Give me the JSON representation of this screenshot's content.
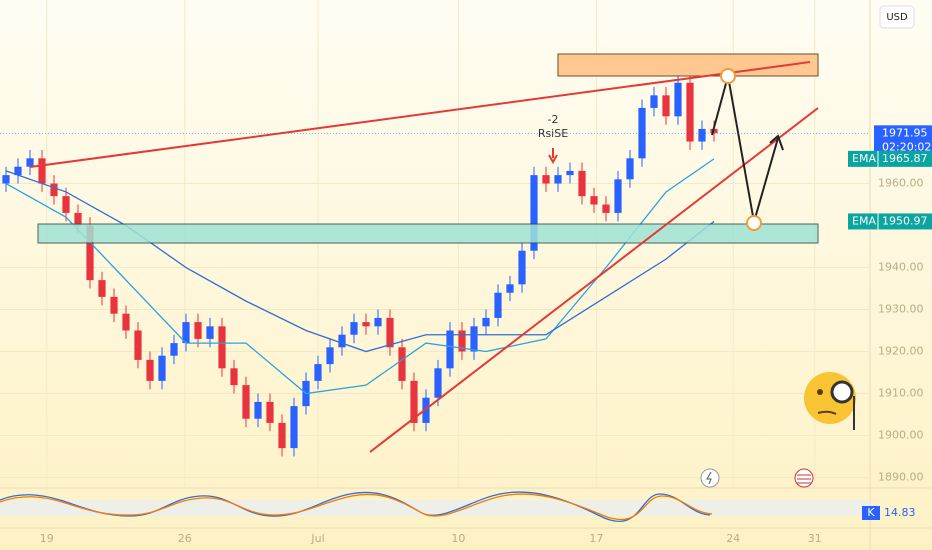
{
  "chart_data": {
    "type": "candlestick",
    "currency": "USD",
    "open": [
      1960,
      1962,
      1964,
      1966,
      1960,
      1957,
      1953,
      1950,
      1937,
      1933,
      1929,
      1925,
      1918,
      1913,
      1919,
      1922,
      1927,
      1923,
      1926,
      1916,
      1912,
      1904,
      1908,
      1903,
      1897,
      1907,
      1913,
      1917,
      1921,
      1924,
      1927,
      1926,
      1928,
      1921,
      1913,
      1903,
      1909,
      1916,
      1925,
      1920,
      1926,
      1928,
      1934,
      1936,
      1944,
      1962,
      1960,
      1962,
      1963,
      1957,
      1955,
      1953,
      1961,
      1966,
      1978,
      1981,
      1976,
      1984,
      1970,
      1973
    ],
    "high": [
      1964,
      1966,
      1968,
      1968,
      1962,
      1959,
      1955,
      1952,
      1939,
      1935,
      1931,
      1927,
      1920,
      1921,
      1924,
      1929,
      1929,
      1928,
      1928,
      1918,
      1914,
      1910,
      1910,
      1905,
      1909,
      1915,
      1919,
      1923,
      1926,
      1929,
      1929,
      1930,
      1930,
      1923,
      1915,
      1911,
      1918,
      1927,
      1927,
      1928,
      1930,
      1936,
      1938,
      1946,
      1964,
      1964,
      1964,
      1965,
      1965,
      1959,
      1957,
      1963,
      1968,
      1980,
      1983,
      1983,
      1986,
      1986,
      1975,
      1975
    ],
    "low": [
      1958,
      1960,
      1962,
      1958,
      1955,
      1951,
      1948,
      1935,
      1931,
      1927,
      1923,
      1916,
      1911,
      1911,
      1917,
      1920,
      1921,
      1921,
      1914,
      1910,
      1902,
      1902,
      1901,
      1895,
      1895,
      1905,
      1911,
      1915,
      1919,
      1922,
      1924,
      1924,
      1919,
      1911,
      1901,
      1901,
      1907,
      1914,
      1918,
      1918,
      1924,
      1926,
      1932,
      1934,
      1942,
      1958,
      1958,
      1960,
      1955,
      1953,
      1951,
      1951,
      1959,
      1964,
      1976,
      1974,
      1974,
      1968,
      1968,
      1970
    ],
    "close": [
      1962,
      1964,
      1966,
      1960,
      1957,
      1953,
      1950,
      1937,
      1933,
      1929,
      1925,
      1918,
      1913,
      1919,
      1922,
      1927,
      1923,
      1926,
      1916,
      1912,
      1904,
      1908,
      1903,
      1897,
      1907,
      1913,
      1917,
      1921,
      1924,
      1927,
      1926,
      1928,
      1921,
      1913,
      1903,
      1909,
      1916,
      1925,
      1920,
      1926,
      1928,
      1934,
      1936,
      1944,
      1962,
      1960,
      1962,
      1963,
      1957,
      1955,
      1953,
      1961,
      1966,
      1978,
      1981,
      1976,
      1984,
      1970,
      1973,
      1972
    ],
    "up_color": "#2962ff",
    "down_color": "#e8343e",
    "ema_x": [
      0,
      5,
      10,
      15,
      20,
      25,
      30,
      35,
      40,
      45,
      50,
      55,
      59
    ],
    "series": [
      {
        "name": "EMA",
        "color": "#29a3e0",
        "values": [
          1960,
          1952,
          1937,
          1922,
          1922,
          1910,
          1912,
          1922,
          1920,
          1923,
          1940,
          1958,
          1965.87
        ]
      },
      {
        "name": "EMA",
        "color": "#2f6fd6",
        "values": [
          1963,
          1958,
          1950,
          1940,
          1932,
          1925,
          1920,
          1924,
          1924,
          1924,
          1933,
          1942,
          1950.97
        ]
      }
    ],
    "last_price": 1971.95,
    "countdown": "02:20:02",
    "annotation": {
      "count": "-2",
      "text": "RsiSE"
    },
    "ylim": [
      1887.5,
      2003.7
    ],
    "yticks": [
      {
        "value": 1890,
        "label": "1890.00"
      },
      {
        "value": 1900,
        "label": "1900.00"
      },
      {
        "value": 1910,
        "label": "1910.00"
      },
      {
        "value": 1920,
        "label": "1920.00"
      },
      {
        "value": 1930,
        "label": "1930.00"
      },
      {
        "value": 1940,
        "label": "1940.00"
      },
      {
        "value": 1960,
        "label": "1960.00"
      }
    ],
    "xlim": [
      -0.5,
      72
    ],
    "xticks": [
      {
        "value": 3.4,
        "label": "19"
      },
      {
        "value": 14.9,
        "label": "26"
      },
      {
        "value": 26,
        "label": "Jul"
      },
      {
        "value": 37.7,
        "label": "10"
      },
      {
        "value": 49.2,
        "label": "17"
      },
      {
        "value": 60.6,
        "label": "24"
      },
      {
        "value": 67.4,
        "label": "31"
      }
    ],
    "oscillator": {
      "name": "K",
      "value": 14.83
    }
  }
}
